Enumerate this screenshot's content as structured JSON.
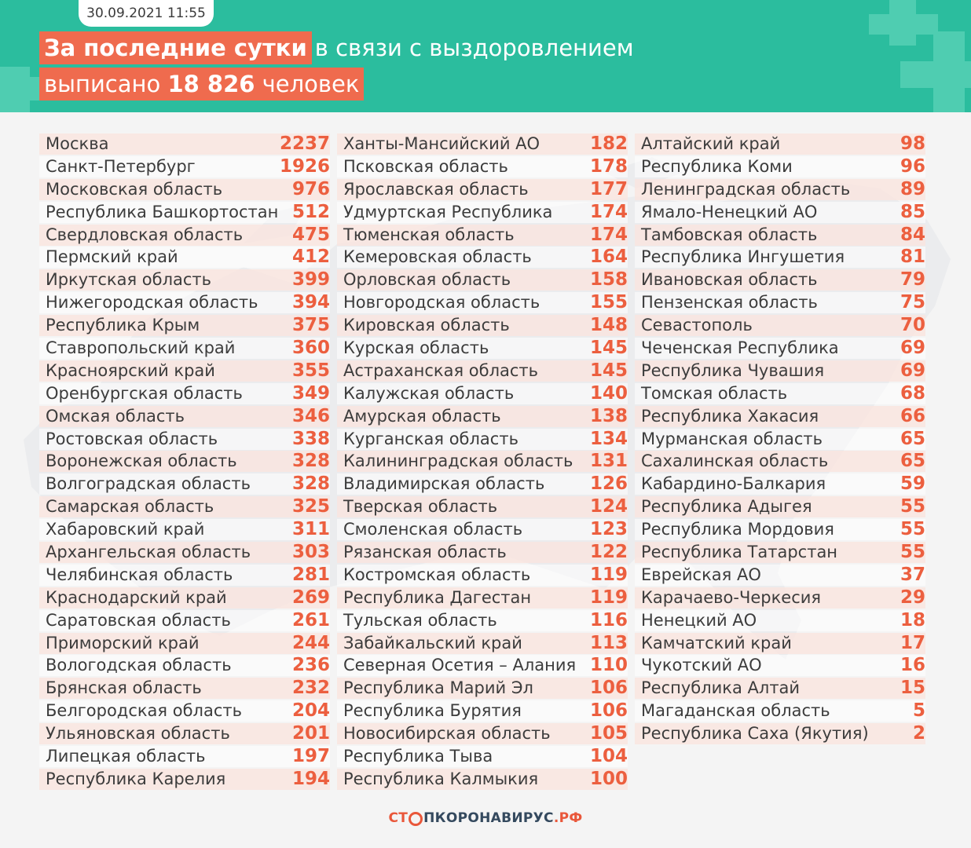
{
  "header": {
    "date": "30.09.2021 11:55",
    "line1_highlight": "За последние сутки",
    "line1_rest": "в связи с выздоровлением",
    "line2_prefix": "выписано",
    "line2_number": "18 826",
    "line2_suffix": "человек"
  },
  "regions": {
    "col1": [
      {
        "name": "Москва",
        "value": "2237"
      },
      {
        "name": "Санкт-Петербург",
        "value": "1926"
      },
      {
        "name": "Московская область",
        "value": "976"
      },
      {
        "name": "Республика Башкортостан",
        "value": "512"
      },
      {
        "name": "Свердловская область",
        "value": "475"
      },
      {
        "name": "Пермский край",
        "value": "412"
      },
      {
        "name": "Иркутская область",
        "value": "399"
      },
      {
        "name": "Нижегородская область",
        "value": "394"
      },
      {
        "name": "Республика Крым",
        "value": "375"
      },
      {
        "name": "Ставропольский край",
        "value": "360"
      },
      {
        "name": "Красноярский край",
        "value": "355"
      },
      {
        "name": "Оренбургская область",
        "value": "349"
      },
      {
        "name": "Омская область",
        "value": "346"
      },
      {
        "name": "Ростовская область",
        "value": "338"
      },
      {
        "name": "Воронежская область",
        "value": "328"
      },
      {
        "name": "Волгоградская область",
        "value": "328"
      },
      {
        "name": "Самарская область",
        "value": "325"
      },
      {
        "name": "Хабаровский край",
        "value": "311"
      },
      {
        "name": "Архангельская область",
        "value": "303"
      },
      {
        "name": "Челябинская область",
        "value": "281"
      },
      {
        "name": "Краснодарский край",
        "value": "269"
      },
      {
        "name": "Саратовская область",
        "value": "261"
      },
      {
        "name": "Приморский край",
        "value": "244"
      },
      {
        "name": "Вологодская область",
        "value": "236"
      },
      {
        "name": "Брянская область",
        "value": "232"
      },
      {
        "name": "Белгородская область",
        "value": "204"
      },
      {
        "name": "Ульяновская область",
        "value": "201"
      },
      {
        "name": "Липецкая область",
        "value": "197"
      },
      {
        "name": "Республика Карелия",
        "value": "194"
      }
    ],
    "col2": [
      {
        "name": "Ханты-Мансийский АО",
        "value": "182"
      },
      {
        "name": "Псковская область",
        "value": "178"
      },
      {
        "name": "Ярославская область",
        "value": "177"
      },
      {
        "name": "Удмуртская Республика",
        "value": "174"
      },
      {
        "name": "Тюменская область",
        "value": "174"
      },
      {
        "name": "Кемеровская область",
        "value": "164"
      },
      {
        "name": "Орловская область",
        "value": "158"
      },
      {
        "name": "Новгородская область",
        "value": "155"
      },
      {
        "name": "Кировская область",
        "value": "148"
      },
      {
        "name": "Курская область",
        "value": "145"
      },
      {
        "name": "Астраханская область",
        "value": "145"
      },
      {
        "name": "Калужская область",
        "value": "140"
      },
      {
        "name": "Амурская область",
        "value": "138"
      },
      {
        "name": "Курганская область",
        "value": "134"
      },
      {
        "name": "Калининградская область",
        "value": "131"
      },
      {
        "name": "Владимирская область",
        "value": "126"
      },
      {
        "name": "Тверская область",
        "value": "124"
      },
      {
        "name": "Смоленская область",
        "value": "123"
      },
      {
        "name": "Рязанская область",
        "value": "122"
      },
      {
        "name": "Костромская область",
        "value": "119"
      },
      {
        "name": "Республика Дагестан",
        "value": "119"
      },
      {
        "name": "Тульская область",
        "value": "116"
      },
      {
        "name": "Забайкальский край",
        "value": "113"
      },
      {
        "name": "Северная Осетия – Алания",
        "value": "110"
      },
      {
        "name": "Республика Марий Эл",
        "value": "106"
      },
      {
        "name": "Республика Бурятия",
        "value": "106"
      },
      {
        "name": "Новосибирская область",
        "value": "105"
      },
      {
        "name": "Республика Тыва",
        "value": "104"
      },
      {
        "name": "Республика Калмыкия",
        "value": "100"
      }
    ],
    "col3": [
      {
        "name": "Алтайский край",
        "value": "98"
      },
      {
        "name": "Республика Коми",
        "value": "96"
      },
      {
        "name": "Ленинградская область",
        "value": "89"
      },
      {
        "name": "Ямало-Ненецкий АО",
        "value": "85"
      },
      {
        "name": "Тамбовская область",
        "value": "84"
      },
      {
        "name": "Республика Ингушетия",
        "value": "81"
      },
      {
        "name": "Ивановская область",
        "value": "79"
      },
      {
        "name": "Пензенская область",
        "value": "75"
      },
      {
        "name": "Севастополь",
        "value": "70"
      },
      {
        "name": "Чеченская Республика",
        "value": "69"
      },
      {
        "name": "Республика Чувашия",
        "value": "69"
      },
      {
        "name": "Томская область",
        "value": "68"
      },
      {
        "name": "Республика Хакасия",
        "value": "66"
      },
      {
        "name": "Мурманская область",
        "value": "65"
      },
      {
        "name": "Сахалинская область",
        "value": "65"
      },
      {
        "name": "Кабардино-Балкария",
        "value": "59"
      },
      {
        "name": "Республика Адыгея",
        "value": "55"
      },
      {
        "name": "Республика Мордовия",
        "value": "55"
      },
      {
        "name": "Республика Татарстан",
        "value": "55"
      },
      {
        "name": "Еврейская АО",
        "value": "37"
      },
      {
        "name": "Карачаево-Черкесия",
        "value": "29"
      },
      {
        "name": "Ненецкий АО",
        "value": "18"
      },
      {
        "name": "Камчатский край",
        "value": "17"
      },
      {
        "name": "Чукотский АО",
        "value": "16"
      },
      {
        "name": "Республика Алтай",
        "value": "15"
      },
      {
        "name": "Магаданская область",
        "value": "5"
      },
      {
        "name": "Республика Саха (Якутия)",
        "value": "2"
      }
    ]
  },
  "footer": {
    "logo_part1": "СТ",
    "logo_part2": "ПКОРОНАВИРУС",
    "logo_part3": ".РФ"
  },
  "colors": {
    "header_bg": "#2bbd9e",
    "accent": "#ef6b4e",
    "value_text": "#ec5f3f",
    "row_alt": "#fbe4de"
  }
}
